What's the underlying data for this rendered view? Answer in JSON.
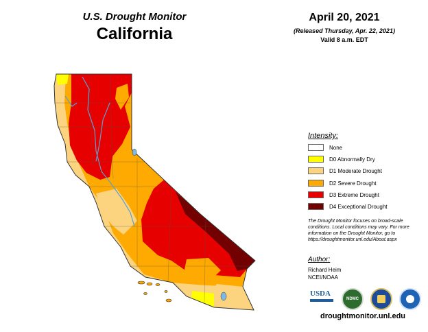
{
  "header": {
    "subtitle": "U.S. Drought Monitor",
    "state": "California",
    "date": "April 20, 2021",
    "released": "(Released Thursday, Apr. 22, 2021)",
    "valid": "Valid 8 a.m. EDT"
  },
  "legend": {
    "title": "Intensity:",
    "items": [
      {
        "label": "None",
        "color": "#ffffff"
      },
      {
        "label": "D0 Abnormally Dry",
        "color": "#ffff00"
      },
      {
        "label": "D1 Moderate Drought",
        "color": "#fcd37f"
      },
      {
        "label": "D2 Severe Drought",
        "color": "#ffaa00"
      },
      {
        "label": "D3 Extreme Drought",
        "color": "#e60000"
      },
      {
        "label": "D4 Exceptional Drought",
        "color": "#730000"
      }
    ]
  },
  "disclaimer": "The Drought Monitor focuses on broad-scale conditions. Local conditions may vary. For more information on the Drought Monitor, go to https://droughtmonitor.unl.edu/About.aspx",
  "author": {
    "title": "Author:",
    "name": "Richard Heim",
    "org": "NCEI/NOAA"
  },
  "logos": [
    {
      "name": "usda-logo",
      "text": "USDA",
      "color": "#1f5c99"
    },
    {
      "name": "ndmc-logo",
      "text": "NDMC",
      "color": "#2e6b2e"
    },
    {
      "name": "doc-logo",
      "text": "",
      "color": "#1f4b99"
    },
    {
      "name": "noaa-logo",
      "text": "",
      "color": "#1f63b5"
    }
  ],
  "url": "droughtmonitor.unl.edu"
}
